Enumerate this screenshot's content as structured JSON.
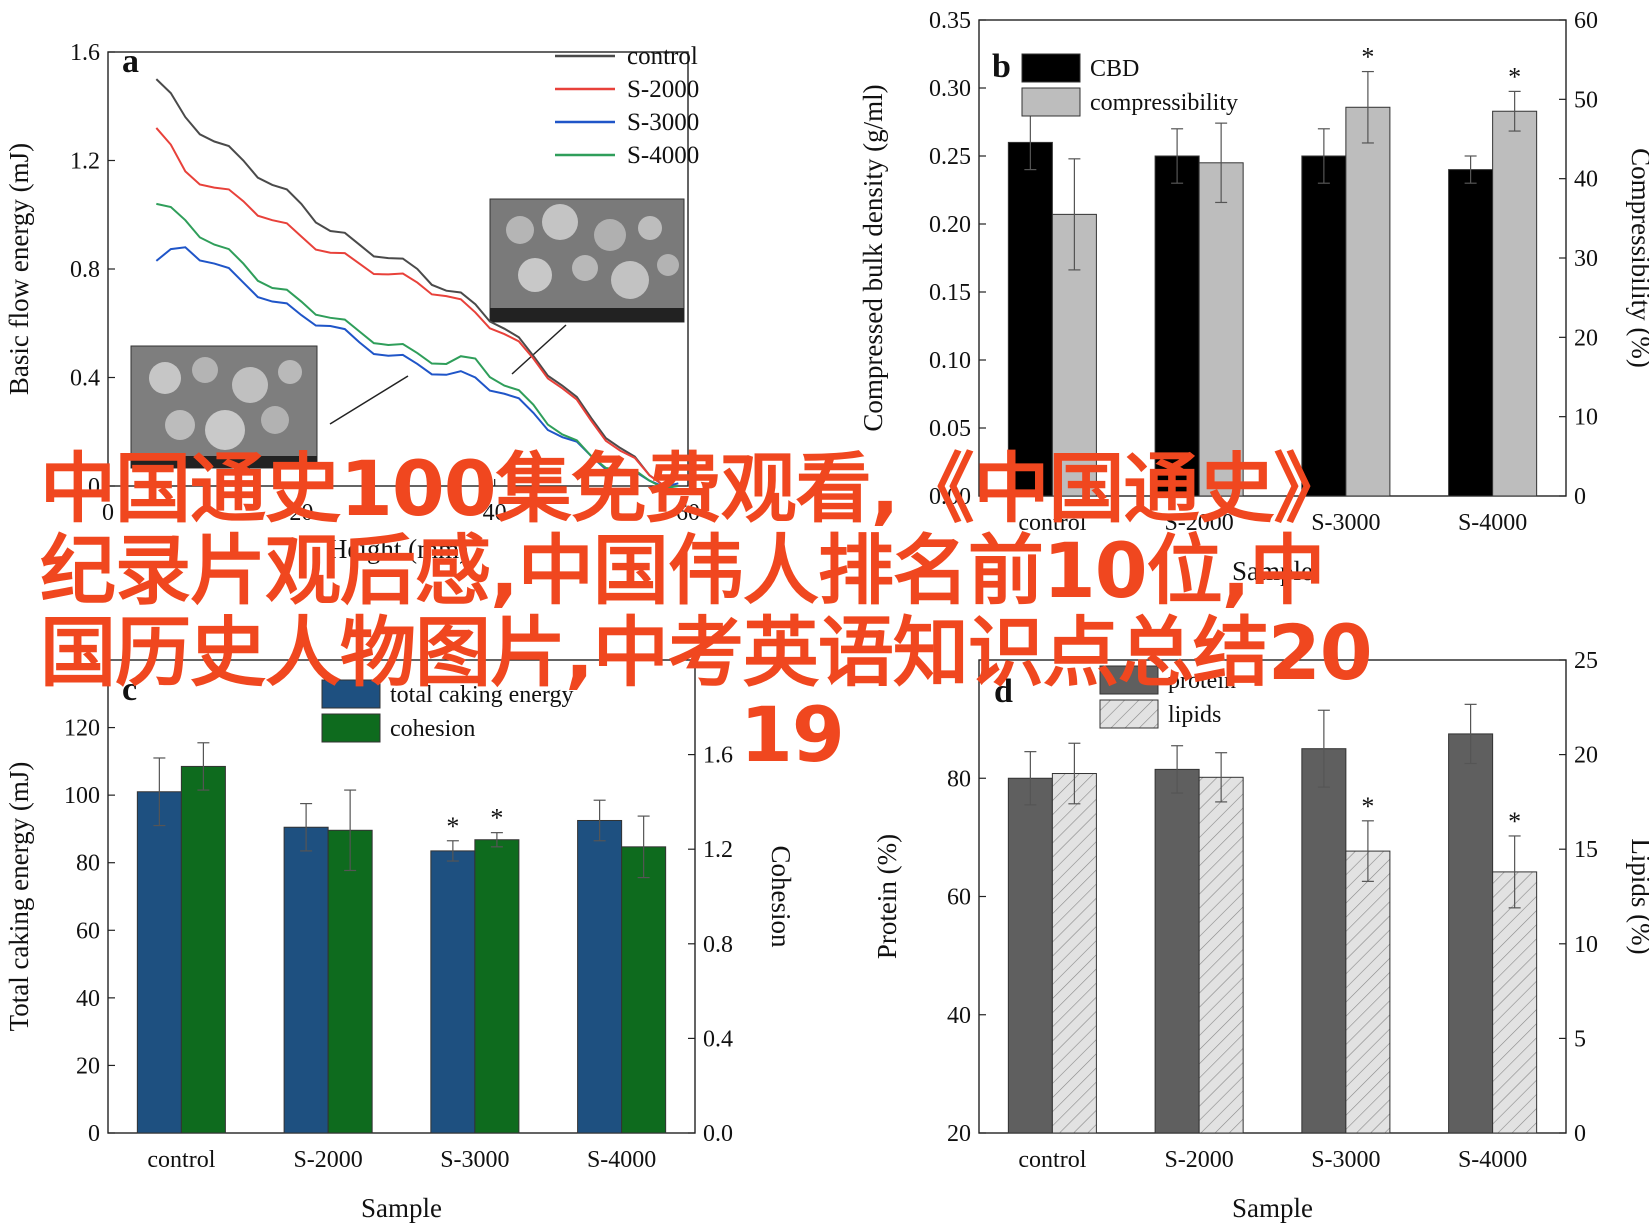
{
  "overlay_text": {
    "line1": "中国通史100集免费观看,《中国通史》",
    "line2": "纪录片观后感,中国伟人排名前10位,中",
    "line3": "国历史人物图片,中考英语知识点总结20",
    "line4": "19"
  },
  "chart_data": [
    {
      "panel": "a",
      "type": "line",
      "xlabel": "Height (mm)",
      "ylabel": "Basic flow energy (mJ)",
      "xlim": [
        0,
        60
      ],
      "ylim": [
        0,
        1.6
      ],
      "x_ticks": [
        "0",
        "20",
        "40",
        "60"
      ],
      "y_ticks": [
        "0",
        "0.4",
        "0.8",
        "1.2",
        "1.6"
      ],
      "legend_position": "top-right",
      "series": [
        {
          "name": "control",
          "color": "#4a4a4a",
          "x": [
            5,
            8,
            11,
            14,
            17,
            20,
            23,
            26,
            29,
            32,
            35,
            38,
            41,
            44,
            47,
            50,
            53,
            56,
            59
          ],
          "y": [
            1.5,
            1.36,
            1.27,
            1.2,
            1.11,
            1.04,
            0.94,
            0.89,
            0.84,
            0.8,
            0.72,
            0.67,
            0.58,
            0.48,
            0.37,
            0.25,
            0.14,
            0.04,
            0.0
          ]
        },
        {
          "name": "S-2000",
          "color": "#e8413a",
          "x": [
            5,
            8,
            11,
            14,
            17,
            20,
            23,
            26,
            29,
            32,
            35,
            38,
            41,
            44,
            47,
            50,
            53,
            56,
            59
          ],
          "y": [
            1.32,
            1.16,
            1.1,
            1.05,
            0.98,
            0.92,
            0.86,
            0.82,
            0.78,
            0.75,
            0.7,
            0.64,
            0.56,
            0.47,
            0.36,
            0.24,
            0.13,
            0.04,
            0.0
          ]
        },
        {
          "name": "S-3000",
          "color": "#1f55c8",
          "x": [
            5,
            8,
            11,
            14,
            17,
            20,
            23,
            26,
            29,
            32,
            35,
            38,
            41,
            44,
            47,
            50,
            53,
            56,
            59
          ],
          "y": [
            0.83,
            0.88,
            0.82,
            0.75,
            0.68,
            0.63,
            0.59,
            0.53,
            0.48,
            0.45,
            0.41,
            0.4,
            0.34,
            0.27,
            0.18,
            0.11,
            0.05,
            0.02,
            0.01
          ]
        },
        {
          "name": "S-4000",
          "color": "#2f9e5a",
          "x": [
            5,
            8,
            11,
            14,
            17,
            20,
            23,
            26,
            29,
            32,
            35,
            38,
            41,
            44,
            47,
            50,
            53,
            56,
            59
          ],
          "y": [
            1.04,
            0.98,
            0.89,
            0.82,
            0.73,
            0.68,
            0.62,
            0.57,
            0.52,
            0.49,
            0.45,
            0.47,
            0.37,
            0.3,
            0.19,
            0.11,
            0.06,
            0.02,
            0.0
          ]
        }
      ]
    },
    {
      "panel": "b",
      "type": "bar",
      "categories": [
        "control",
        "S-2000",
        "S-3000",
        "S-4000"
      ],
      "xlabel": "Sample",
      "ylabel": "Compressed bulk density (g/ml)",
      "y2label": "Compressibility (%)",
      "ylim": [
        0,
        0.35
      ],
      "y2lim": [
        0,
        60
      ],
      "y_ticks": [
        "0.00",
        "0.05",
        "0.10",
        "0.15",
        "0.20",
        "0.25",
        "0.30",
        "0.35"
      ],
      "y2_ticks": [
        "0",
        "10",
        "20",
        "30",
        "40",
        "50",
        "60"
      ],
      "legend_position": "top-left",
      "series": [
        {
          "name": "CBD",
          "axis": "left",
          "color": "#000000",
          "pattern": "solid",
          "values": [
            0.26,
            0.25,
            0.25,
            0.24
          ],
          "errors": [
            0.02,
            0.02,
            0.02,
            0.01
          ],
          "sig": [
            "",
            "",
            "",
            ""
          ]
        },
        {
          "name": "compressibility",
          "axis": "right",
          "color": "#bdbdbd",
          "pattern": "solid",
          "values": [
            35.5,
            42,
            49,
            48.5
          ],
          "errors": [
            7,
            5,
            4.5,
            2.5
          ],
          "sig": [
            "",
            "",
            "*",
            "*"
          ]
        }
      ]
    },
    {
      "panel": "c",
      "type": "bar",
      "categories": [
        "control",
        "S-2000",
        "S-3000",
        "S-4000"
      ],
      "xlabel": "Sample",
      "ylabel": "Total caking energy (mJ)",
      "y2label": "Cohesion",
      "ylim": [
        0,
        140
      ],
      "y2lim": [
        0,
        2.0
      ],
      "y_ticks": [
        "0",
        "20",
        "40",
        "60",
        "80",
        "100",
        "120"
      ],
      "y2_ticks": [
        "0.0",
        "0.4",
        "0.8",
        "1.2",
        "1.6"
      ],
      "legend_position": "top-center",
      "series": [
        {
          "name": "total caking energy",
          "axis": "left",
          "color": "#1e5080",
          "pattern": "solid",
          "values": [
            101,
            90.5,
            83.5,
            92.5
          ],
          "errors": [
            10,
            7,
            3,
            6
          ],
          "sig": [
            "",
            "",
            "*",
            ""
          ]
        },
        {
          "name": "cohesion",
          "axis": "right",
          "color": "#0e6b1e",
          "pattern": "solid",
          "values": [
            1.55,
            1.28,
            1.24,
            1.21
          ],
          "errors": [
            0.1,
            0.17,
            0.03,
            0.13
          ],
          "sig": [
            "",
            "",
            "*",
            ""
          ]
        }
      ]
    },
    {
      "panel": "d",
      "type": "bar",
      "categories": [
        "control",
        "S-2000",
        "S-3000",
        "S-4000"
      ],
      "xlabel": "Sample",
      "ylabel": "Protein (%)",
      "y2label": "Lipids (%)",
      "ylim": [
        20,
        100
      ],
      "y2lim": [
        0,
        25
      ],
      "y_ticks": [
        "20",
        "40",
        "60",
        "80"
      ],
      "y2_ticks": [
        "0",
        "5",
        "10",
        "15",
        "20",
        "25"
      ],
      "legend_position": "top-center",
      "series": [
        {
          "name": "protein",
          "axis": "left",
          "color": "#5f5f5f",
          "pattern": "solid",
          "values": [
            80,
            81.5,
            85,
            87.5
          ],
          "errors": [
            4.5,
            4,
            6.5,
            5
          ],
          "sig": [
            "",
            "",
            "",
            ""
          ]
        },
        {
          "name": "lipids",
          "axis": "right",
          "color": "#dcdcdc",
          "pattern": "hatch",
          "values": [
            19,
            18.8,
            14.9,
            13.8
          ],
          "errors": [
            1.6,
            1.3,
            1.6,
            1.9
          ],
          "sig": [
            "",
            "",
            "*",
            "*"
          ]
        }
      ]
    }
  ]
}
